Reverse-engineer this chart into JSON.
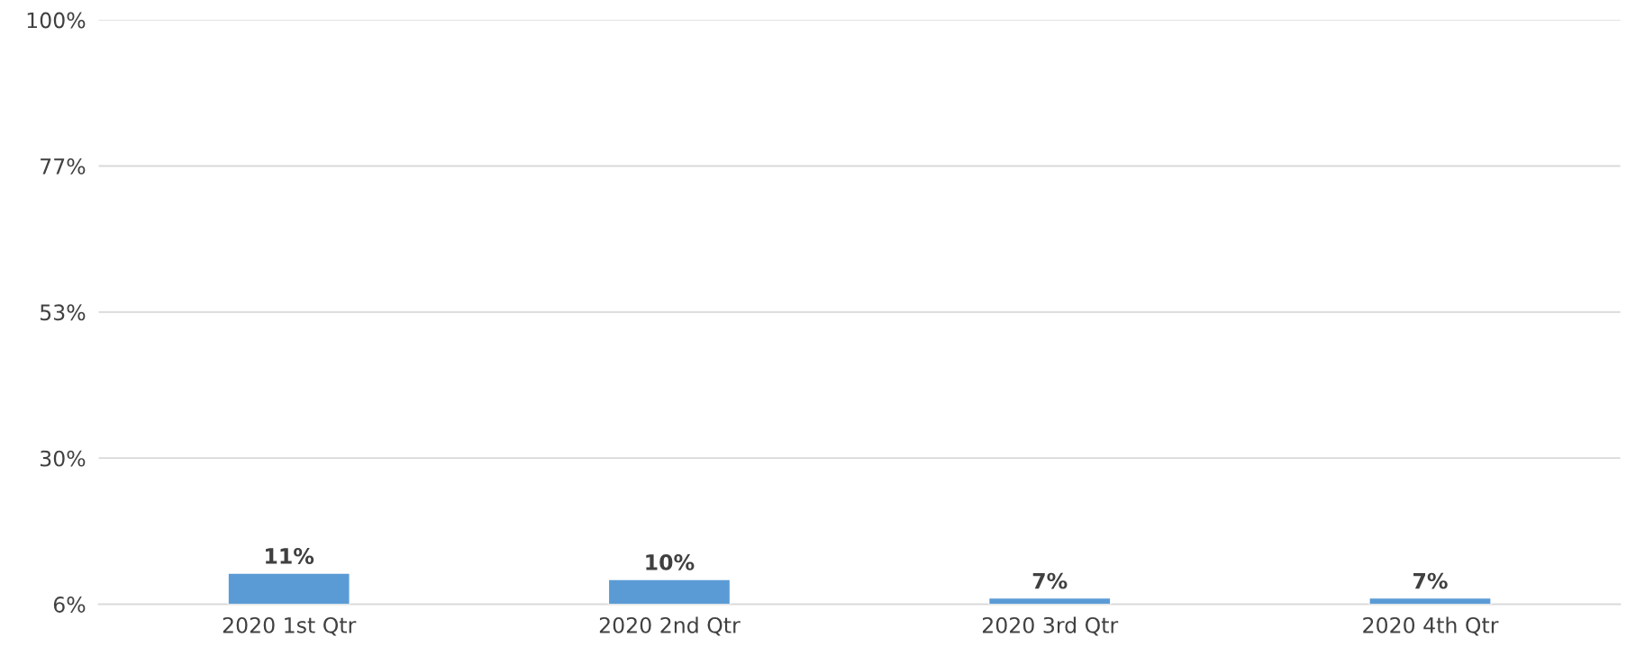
{
  "chart_data": {
    "type": "bar",
    "categories": [
      "2020 1st Qtr",
      "2020 2nd Qtr",
      "2020 3rd Qtr",
      "2020 4th Qtr"
    ],
    "values": [
      11,
      10,
      7,
      7
    ],
    "value_labels": [
      "11%",
      "10%",
      "7%",
      "7%"
    ],
    "color": "#5b9bd5",
    "ylim": [
      6,
      100
    ],
    "yticks": [
      {
        "value": 6,
        "label": "6%"
      },
      {
        "value": 29.5,
        "label": "30%"
      },
      {
        "value": 53,
        "label": "53%"
      },
      {
        "value": 76.5,
        "label": "77%"
      },
      {
        "value": 100,
        "label": "100%"
      }
    ],
    "grid": "y"
  }
}
